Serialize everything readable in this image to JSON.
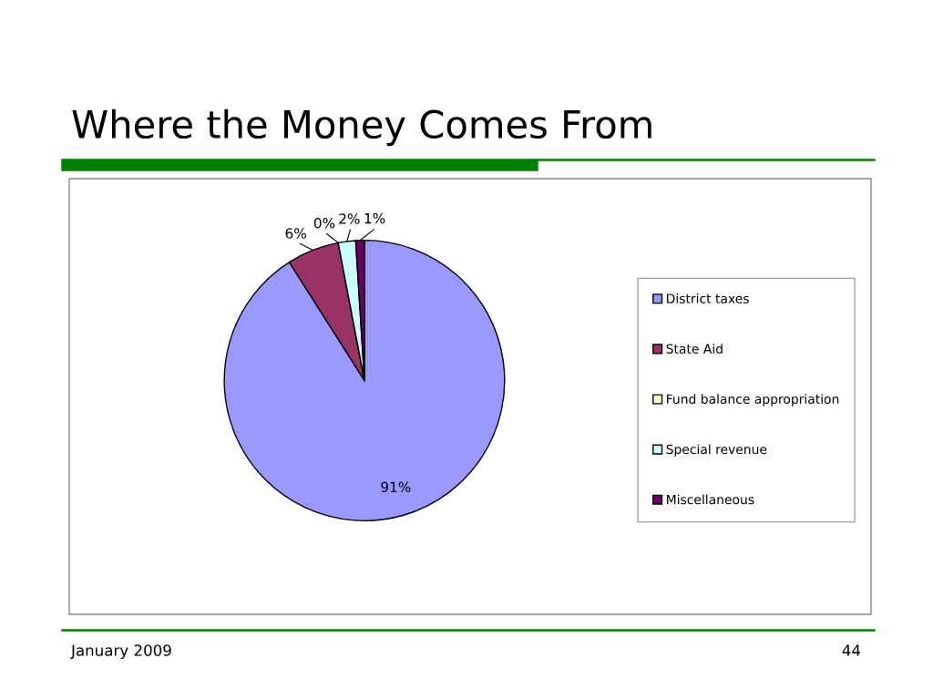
{
  "chart_data": {
    "type": "pie",
    "title": "Where the Money Comes From",
    "categories": [
      "District taxes",
      "State Aid",
      "Fund balance appropriation",
      "Special revenue",
      "Miscellaneous"
    ],
    "values": [
      91,
      6,
      0,
      2,
      1
    ],
    "value_labels": [
      "91%",
      "6%",
      "0%",
      "2%",
      "1%"
    ],
    "colors": [
      "#9999ff",
      "#993366",
      "#ffffcc",
      "#ccffff",
      "#660066"
    ],
    "legend": "right",
    "annotations": [
      "January 2009",
      "44"
    ]
  }
}
